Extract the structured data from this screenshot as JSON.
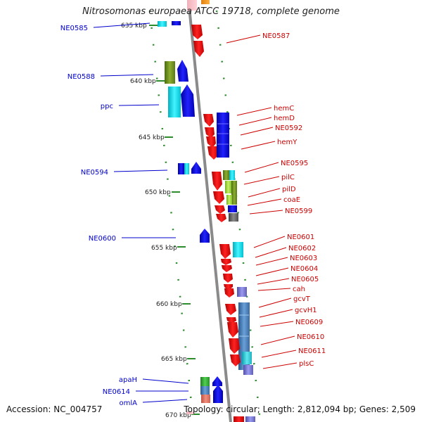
{
  "header": {
    "title": "Nitrosomonas europaea ATCC 19718, complete genome"
  },
  "footer": {
    "accession": "Accession: NC_004757",
    "summary": "Topology: circular; Length: 2,812,094 bp; Genes: 2,509"
  },
  "ticks": [
    {
      "label": "635 kbp"
    },
    {
      "label": "640 kbp"
    },
    {
      "label": "645 kbp"
    },
    {
      "label": "650 kbp"
    },
    {
      "label": "655 kbp"
    },
    {
      "label": "660 kbp"
    },
    {
      "label": "665 kbp"
    },
    {
      "label": "670 kbp"
    }
  ],
  "left_labels": [
    {
      "text": "NE0585"
    },
    {
      "text": "NE0588"
    },
    {
      "text": "ppc"
    },
    {
      "text": "NE0594"
    },
    {
      "text": "NE0600"
    },
    {
      "text": "apaH"
    },
    {
      "text": "NE0614"
    },
    {
      "text": "omlA"
    }
  ],
  "right_labels": [
    {
      "text": "NE0587"
    },
    {
      "text": "hemC"
    },
    {
      "text": "hemD"
    },
    {
      "text": "NE0592"
    },
    {
      "text": "hemY"
    },
    {
      "text": "NE0595"
    },
    {
      "text": "pilC"
    },
    {
      "text": "pilD"
    },
    {
      "text": "coaE"
    },
    {
      "text": "NE0599"
    },
    {
      "text": "NE0601"
    },
    {
      "text": "NE0602"
    },
    {
      "text": "NE0603"
    },
    {
      "text": "NE0604"
    },
    {
      "text": "NE0605"
    },
    {
      "text": "cah"
    },
    {
      "text": "gcvT"
    },
    {
      "text": "gcvH1"
    },
    {
      "text": "NE0609"
    },
    {
      "text": "NE0610"
    },
    {
      "text": "NE0611"
    },
    {
      "text": "plsC"
    }
  ],
  "colors": {
    "backbone": "#8a8a8a",
    "dots": "#2e8b2e",
    "label_left": "#0000cc",
    "label_right": "#cc0000",
    "forward": "#ff0000",
    "reverse": "#0000ff"
  }
}
